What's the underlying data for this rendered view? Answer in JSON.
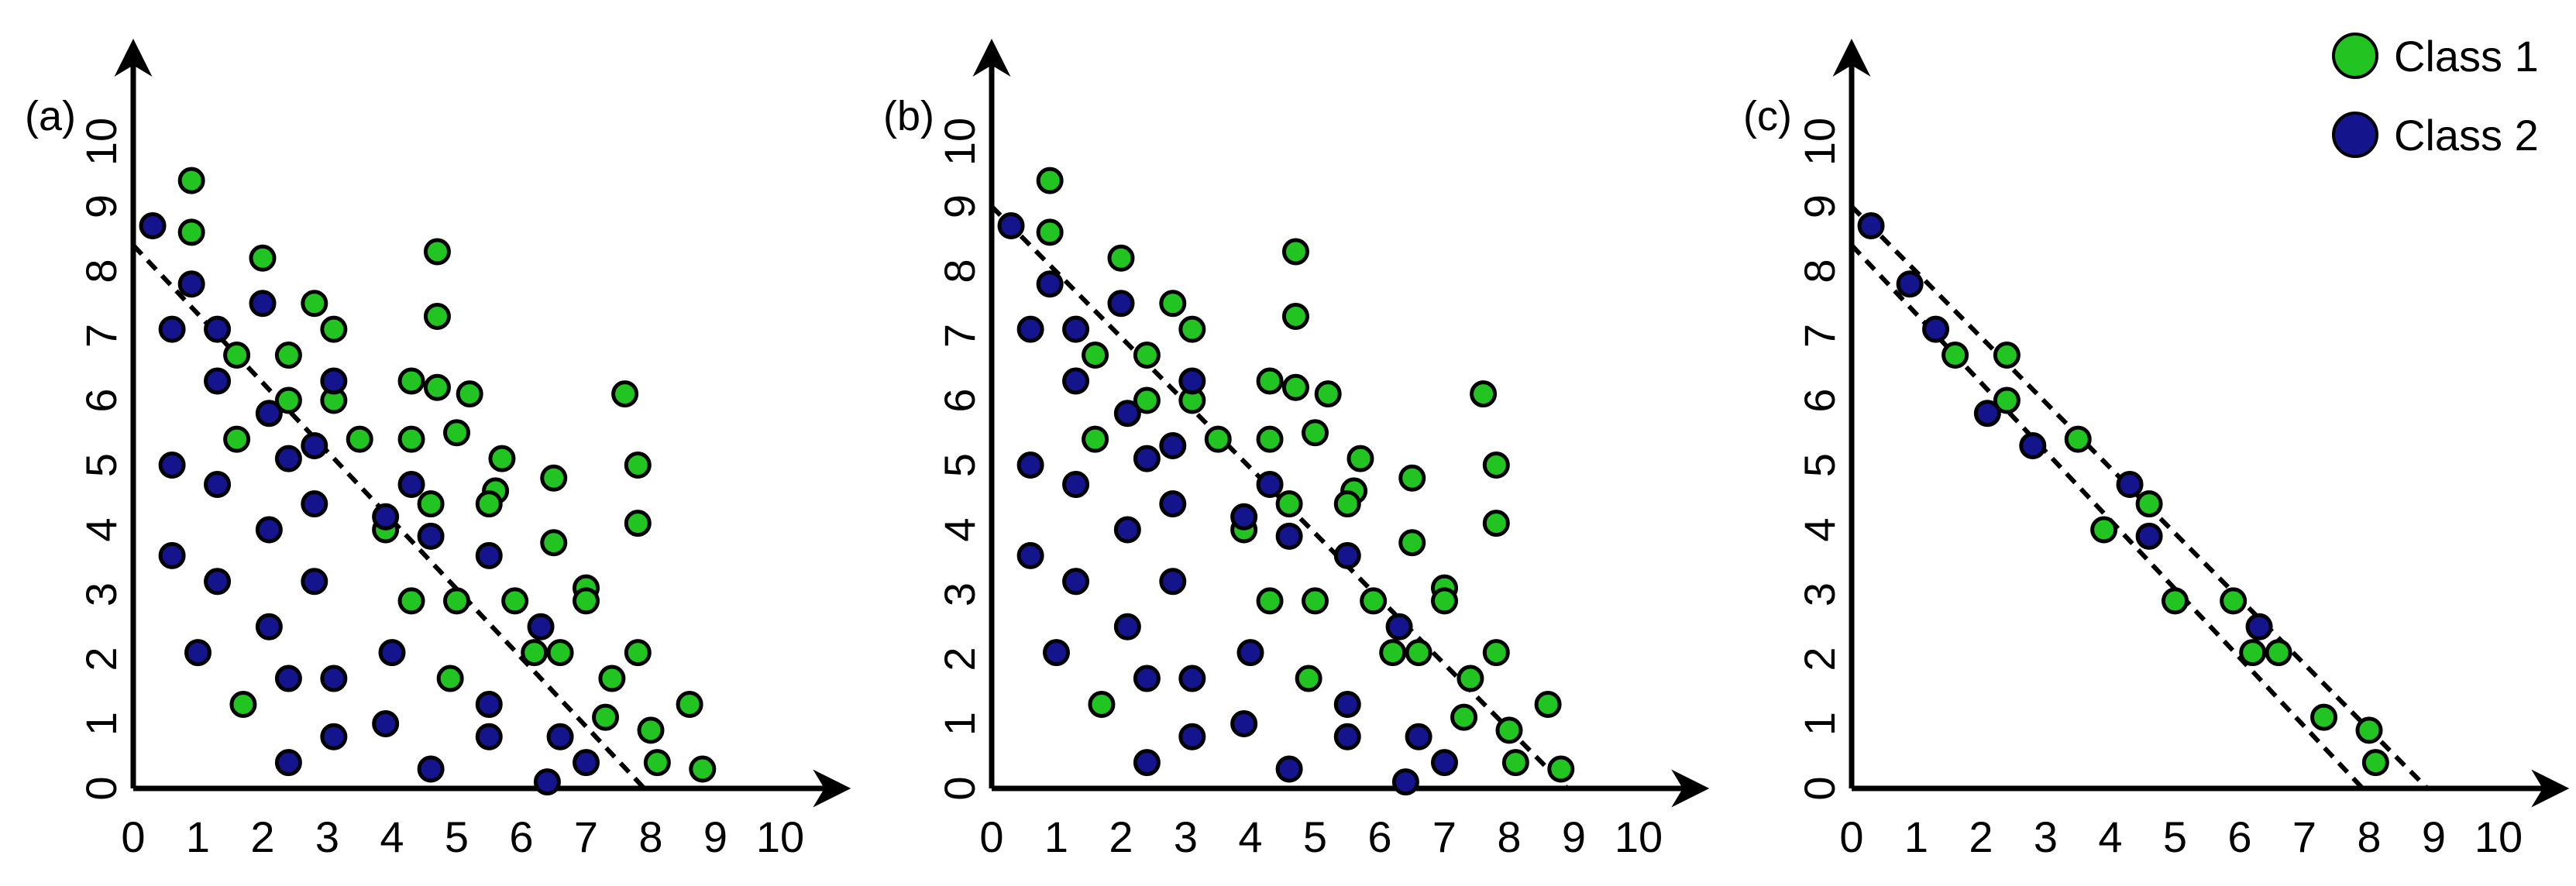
{
  "legend": {
    "class1_label": "Class 1",
    "class2_label": "Class 2"
  },
  "colors": {
    "class1": "#22c422",
    "class2": "#14148c",
    "outline": "#000000",
    "axis": "#000000"
  },
  "chart_data": [
    {
      "type": "scatter",
      "panel_label": "(a)",
      "xticks": [
        "0",
        "1",
        "2",
        "3",
        "4",
        "5",
        "6",
        "7",
        "8",
        "9",
        "10"
      ],
      "yticks": [
        "0",
        "1",
        "2",
        "3",
        "4",
        "5",
        "6",
        "7",
        "8",
        "9",
        "10"
      ],
      "xlim": [
        0,
        10.8
      ],
      "ylim": [
        0,
        11.3
      ],
      "grid": false,
      "series": [
        {
          "name": "Class 1",
          "points": [
            [
              0.9,
              9.4
            ],
            [
              0.9,
              8.6
            ],
            [
              2.0,
              8.2
            ],
            [
              4.7,
              8.3
            ],
            [
              2.8,
              7.5
            ],
            [
              4.7,
              7.3
            ],
            [
              3.1,
              7.1
            ],
            [
              1.6,
              6.7
            ],
            [
              2.4,
              6.7
            ],
            [
              4.3,
              6.3
            ],
            [
              4.7,
              6.2
            ],
            [
              5.2,
              6.1
            ],
            [
              7.6,
              6.1
            ],
            [
              2.4,
              6.0
            ],
            [
              3.1,
              6.0
            ],
            [
              1.6,
              5.4
            ],
            [
              3.5,
              5.4
            ],
            [
              4.3,
              5.4
            ],
            [
              5.0,
              5.5
            ],
            [
              5.7,
              5.1
            ],
            [
              7.8,
              5.0
            ],
            [
              5.6,
              4.6
            ],
            [
              6.5,
              4.8
            ],
            [
              4.6,
              4.4
            ],
            [
              5.5,
              4.4
            ],
            [
              3.9,
              4.0
            ],
            [
              7.8,
              4.1
            ],
            [
              6.5,
              3.8
            ],
            [
              7.0,
              3.1
            ],
            [
              4.3,
              2.9
            ],
            [
              5.0,
              2.9
            ],
            [
              5.9,
              2.9
            ],
            [
              7.0,
              2.9
            ],
            [
              6.2,
              2.1
            ],
            [
              6.6,
              2.1
            ],
            [
              7.8,
              2.1
            ],
            [
              4.9,
              1.7
            ],
            [
              7.4,
              1.7
            ],
            [
              1.7,
              1.3
            ],
            [
              8.6,
              1.3
            ],
            [
              7.3,
              1.1
            ],
            [
              8.0,
              0.9
            ],
            [
              8.1,
              0.4
            ],
            [
              8.8,
              0.3
            ]
          ]
        },
        {
          "name": "Class 2",
          "points": [
            [
              0.3,
              8.7
            ],
            [
              0.9,
              7.8
            ],
            [
              2.0,
              7.5
            ],
            [
              0.6,
              7.1
            ],
            [
              1.3,
              7.1
            ],
            [
              1.3,
              6.3
            ],
            [
              3.1,
              6.3
            ],
            [
              2.1,
              5.8
            ],
            [
              2.8,
              5.3
            ],
            [
              2.4,
              5.1
            ],
            [
              0.6,
              5.0
            ],
            [
              1.3,
              4.7
            ],
            [
              4.3,
              4.7
            ],
            [
              2.8,
              4.4
            ],
            [
              3.9,
              4.2
            ],
            [
              2.1,
              4.0
            ],
            [
              4.6,
              3.9
            ],
            [
              0.6,
              3.6
            ],
            [
              5.5,
              3.6
            ],
            [
              1.3,
              3.2
            ],
            [
              2.8,
              3.2
            ],
            [
              6.3,
              2.5
            ],
            [
              2.1,
              2.5
            ],
            [
              4.0,
              2.1
            ],
            [
              1.0,
              2.1
            ],
            [
              2.4,
              1.7
            ],
            [
              3.1,
              1.7
            ],
            [
              5.5,
              1.3
            ],
            [
              3.9,
              1.0
            ],
            [
              3.1,
              0.8
            ],
            [
              5.5,
              0.8
            ],
            [
              6.6,
              0.8
            ],
            [
              2.4,
              0.4
            ],
            [
              7.0,
              0.4
            ],
            [
              4.6,
              0.3
            ],
            [
              6.4,
              0.1
            ]
          ]
        }
      ],
      "boundary_lines": [
        {
          "x1": 0,
          "y1": 8.4,
          "x2": 7.9,
          "y2": 0
        }
      ]
    },
    {
      "type": "scatter",
      "panel_label": "(b)",
      "xticks": [
        "0",
        "1",
        "2",
        "3",
        "4",
        "5",
        "6",
        "7",
        "8",
        "9",
        "10"
      ],
      "yticks": [
        "0",
        "1",
        "2",
        "3",
        "4",
        "5",
        "6",
        "7",
        "8",
        "9",
        "10"
      ],
      "xlim": [
        0,
        10.8
      ],
      "ylim": [
        0,
        11.3
      ],
      "grid": false,
      "series": [
        {
          "name": "Class 1",
          "points": [
            [
              0.9,
              9.4
            ],
            [
              0.9,
              8.6
            ],
            [
              2.0,
              8.2
            ],
            [
              4.7,
              8.3
            ],
            [
              2.8,
              7.5
            ],
            [
              4.7,
              7.3
            ],
            [
              3.1,
              7.1
            ],
            [
              1.6,
              6.7
            ],
            [
              2.4,
              6.7
            ],
            [
              4.3,
              6.3
            ],
            [
              4.7,
              6.2
            ],
            [
              5.2,
              6.1
            ],
            [
              7.6,
              6.1
            ],
            [
              2.4,
              6.0
            ],
            [
              3.1,
              6.0
            ],
            [
              1.6,
              5.4
            ],
            [
              3.5,
              5.4
            ],
            [
              4.3,
              5.4
            ],
            [
              5.0,
              5.5
            ],
            [
              5.7,
              5.1
            ],
            [
              7.8,
              5.0
            ],
            [
              5.6,
              4.6
            ],
            [
              6.5,
              4.8
            ],
            [
              4.6,
              4.4
            ],
            [
              5.5,
              4.4
            ],
            [
              3.9,
              4.0
            ],
            [
              7.8,
              4.1
            ],
            [
              6.5,
              3.8
            ],
            [
              7.0,
              3.1
            ],
            [
              4.3,
              2.9
            ],
            [
              5.0,
              2.9
            ],
            [
              5.9,
              2.9
            ],
            [
              7.0,
              2.9
            ],
            [
              6.2,
              2.1
            ],
            [
              6.6,
              2.1
            ],
            [
              7.8,
              2.1
            ],
            [
              4.9,
              1.7
            ],
            [
              7.4,
              1.7
            ],
            [
              1.7,
              1.3
            ],
            [
              8.6,
              1.3
            ],
            [
              7.3,
              1.1
            ],
            [
              8.0,
              0.9
            ],
            [
              8.1,
              0.4
            ],
            [
              8.8,
              0.3
            ]
          ]
        },
        {
          "name": "Class 2",
          "points": [
            [
              0.3,
              8.7
            ],
            [
              0.9,
              7.8
            ],
            [
              2.0,
              7.5
            ],
            [
              0.6,
              7.1
            ],
            [
              1.3,
              7.1
            ],
            [
              1.3,
              6.3
            ],
            [
              3.1,
              6.3
            ],
            [
              2.1,
              5.8
            ],
            [
              2.8,
              5.3
            ],
            [
              2.4,
              5.1
            ],
            [
              0.6,
              5.0
            ],
            [
              1.3,
              4.7
            ],
            [
              4.3,
              4.7
            ],
            [
              2.8,
              4.4
            ],
            [
              3.9,
              4.2
            ],
            [
              2.1,
              4.0
            ],
            [
              4.6,
              3.9
            ],
            [
              0.6,
              3.6
            ],
            [
              5.5,
              3.6
            ],
            [
              1.3,
              3.2
            ],
            [
              2.8,
              3.2
            ],
            [
              6.3,
              2.5
            ],
            [
              2.1,
              2.5
            ],
            [
              4.0,
              2.1
            ],
            [
              1.0,
              2.1
            ],
            [
              2.4,
              1.7
            ],
            [
              3.1,
              1.7
            ],
            [
              5.5,
              1.3
            ],
            [
              3.9,
              1.0
            ],
            [
              3.1,
              0.8
            ],
            [
              5.5,
              0.8
            ],
            [
              6.6,
              0.8
            ],
            [
              2.4,
              0.4
            ],
            [
              7.0,
              0.4
            ],
            [
              4.6,
              0.3
            ],
            [
              6.4,
              0.1
            ]
          ]
        }
      ],
      "boundary_lines": [
        {
          "x1": 0,
          "y1": 9.0,
          "x2": 8.9,
          "y2": 0
        }
      ]
    },
    {
      "type": "scatter",
      "panel_label": "(c)",
      "xticks": [
        "0",
        "1",
        "2",
        "3",
        "4",
        "5",
        "6",
        "7",
        "8",
        "9",
        "10"
      ],
      "yticks": [
        "0",
        "1",
        "2",
        "3",
        "4",
        "5",
        "6",
        "7",
        "8",
        "9",
        "10"
      ],
      "xlim": [
        0,
        10.8
      ],
      "ylim": [
        0,
        11.3
      ],
      "grid": false,
      "series": [
        {
          "name": "Class 1",
          "points": [
            [
              1.6,
              6.7
            ],
            [
              2.4,
              6.7
            ],
            [
              2.4,
              6.0
            ],
            [
              3.5,
              5.4
            ],
            [
              4.6,
              4.4
            ],
            [
              3.9,
              4.0
            ],
            [
              5.0,
              2.9
            ],
            [
              5.9,
              2.9
            ],
            [
              6.2,
              2.1
            ],
            [
              6.6,
              2.1
            ],
            [
              7.3,
              1.1
            ],
            [
              8.0,
              0.9
            ],
            [
              8.1,
              0.4
            ]
          ]
        },
        {
          "name": "Class 2",
          "points": [
            [
              0.3,
              8.7
            ],
            [
              0.9,
              7.8
            ],
            [
              1.3,
              7.1
            ],
            [
              2.1,
              5.8
            ],
            [
              2.8,
              5.3
            ],
            [
              4.3,
              4.7
            ],
            [
              4.6,
              3.9
            ],
            [
              6.3,
              2.5
            ]
          ]
        }
      ],
      "boundary_lines": [
        {
          "x1": 0,
          "y1": 8.4,
          "x2": 7.9,
          "y2": 0
        },
        {
          "x1": 0,
          "y1": 9.0,
          "x2": 8.9,
          "y2": 0
        }
      ]
    }
  ]
}
